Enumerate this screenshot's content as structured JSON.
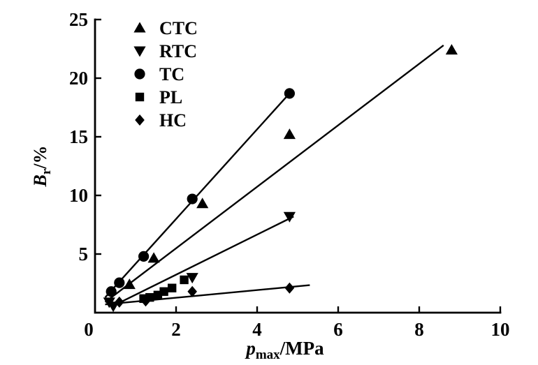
{
  "chart_data": {
    "type": "scatter",
    "title": "",
    "xlabel": {
      "symbol": "p",
      "subscript": "max",
      "rest": "/MPa"
    },
    "ylabel": {
      "symbol": "B",
      "subscript": "r",
      "rest": "/%"
    },
    "xlim": [
      0,
      10
    ],
    "ylim": [
      0,
      25
    ],
    "x_ticks": [
      0,
      2,
      4,
      6,
      8,
      10
    ],
    "y_ticks": [
      5,
      10,
      15,
      20,
      25
    ],
    "grid": false,
    "legend_position": "top-left-inside",
    "colors": {
      "foreground": "#000000",
      "background": "#ffffff"
    },
    "series": [
      {
        "name": "CTC",
        "marker": "triangle-up",
        "points": [
          [
            0.85,
            2.4
          ],
          [
            1.45,
            4.65
          ],
          [
            2.65,
            9.3
          ],
          [
            4.8,
            15.2
          ],
          [
            8.8,
            22.4
          ]
        ],
        "fit_line": {
          "x1": 0.25,
          "y1": 0.9,
          "x2": 8.6,
          "y2": 22.8
        }
      },
      {
        "name": "RTC",
        "marker": "triangle-down",
        "points": [
          [
            0.35,
            0.9
          ],
          [
            0.45,
            0.55
          ],
          [
            2.4,
            3.0
          ],
          [
            4.8,
            8.2
          ]
        ],
        "fit_line": {
          "x1": 0.4,
          "y1": 0.5,
          "x2": 4.9,
          "y2": 8.2
        }
      },
      {
        "name": "TC",
        "marker": "circle",
        "points": [
          [
            0.4,
            1.8
          ],
          [
            0.6,
            2.55
          ],
          [
            1.2,
            4.8
          ],
          [
            2.4,
            9.7
          ],
          [
            4.8,
            18.7
          ]
        ],
        "fit_line": {
          "x1": 0.25,
          "y1": 1.3,
          "x2": 4.8,
          "y2": 18.7
        }
      },
      {
        "name": "PL",
        "marker": "square",
        "points": [
          [
            1.2,
            1.2
          ],
          [
            1.35,
            1.3
          ],
          [
            1.55,
            1.5
          ],
          [
            1.7,
            1.8
          ],
          [
            1.9,
            2.1
          ],
          [
            2.2,
            2.8
          ]
        ],
        "fit_line": null
      },
      {
        "name": "HC",
        "marker": "diamond",
        "points": [
          [
            0.6,
            0.9
          ],
          [
            1.25,
            1.0
          ],
          [
            2.4,
            1.8
          ],
          [
            4.8,
            2.1
          ]
        ],
        "fit_line": {
          "x1": 0.25,
          "y1": 0.7,
          "x2": 5.3,
          "y2": 2.35
        }
      }
    ]
  }
}
